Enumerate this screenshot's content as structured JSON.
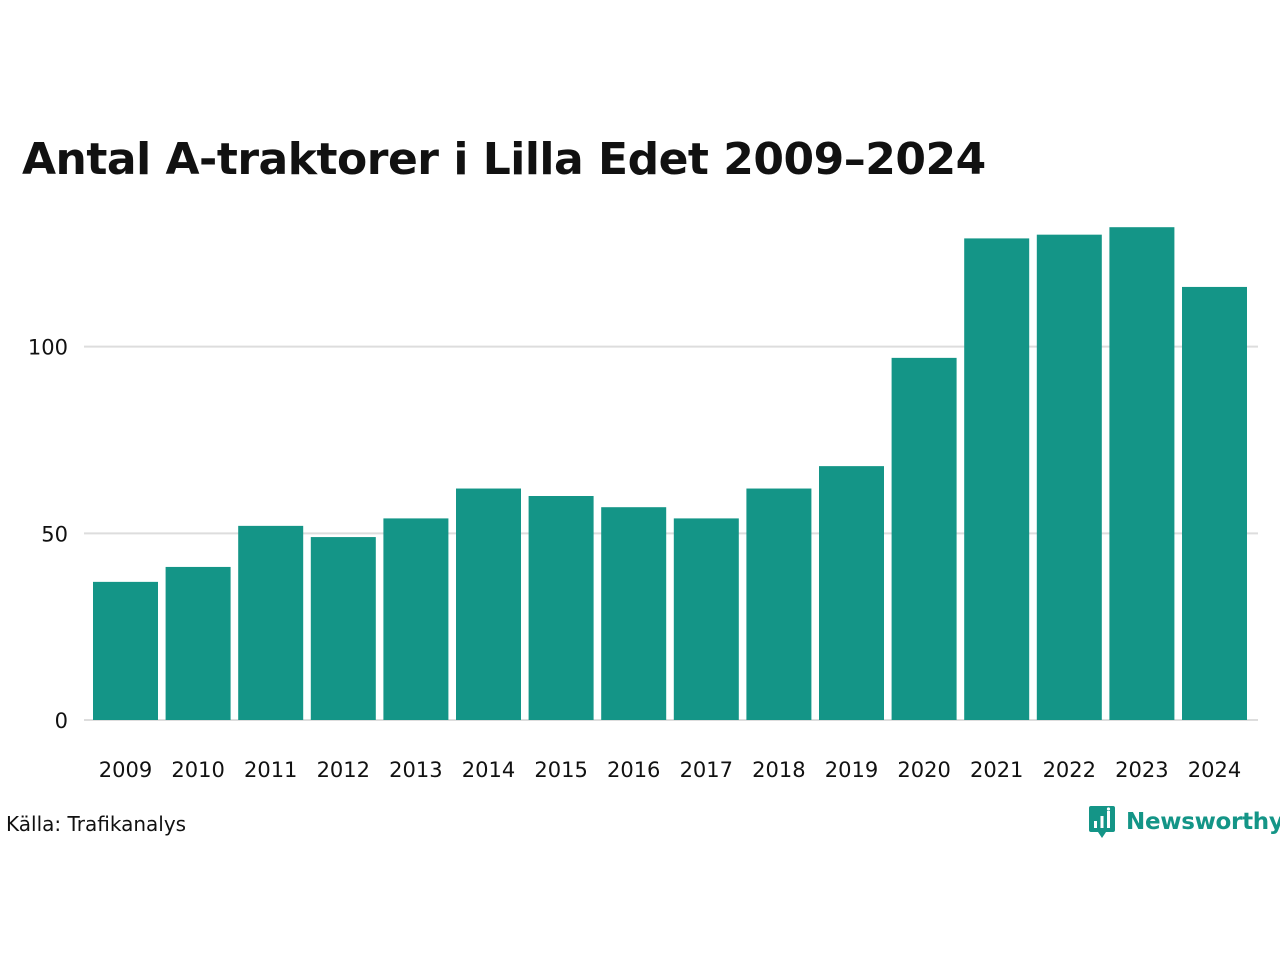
{
  "colors": {
    "bar": "#149587",
    "grid": "#dddddd",
    "text": "#111111",
    "brand": "#149587"
  },
  "source": "Källa: Trafikanalys",
  "brand": {
    "name": "Newsworthy",
    "icon": "newsworthy-logo-icon"
  },
  "chart_data": {
    "type": "bar",
    "title": "Antal A-traktorer i Lilla Edet 2009–2024",
    "xlabel": "",
    "ylabel": "",
    "categories": [
      "2009",
      "2010",
      "2011",
      "2012",
      "2013",
      "2014",
      "2015",
      "2016",
      "2017",
      "2018",
      "2019",
      "2020",
      "2021",
      "2022",
      "2023",
      "2024"
    ],
    "values": [
      37,
      41,
      52,
      49,
      54,
      62,
      60,
      57,
      54,
      62,
      68,
      97,
      129,
      130,
      132,
      116
    ],
    "yticks": [
      0,
      50,
      100
    ],
    "ylim": [
      0,
      135
    ],
    "grid": true,
    "legend": "none"
  }
}
